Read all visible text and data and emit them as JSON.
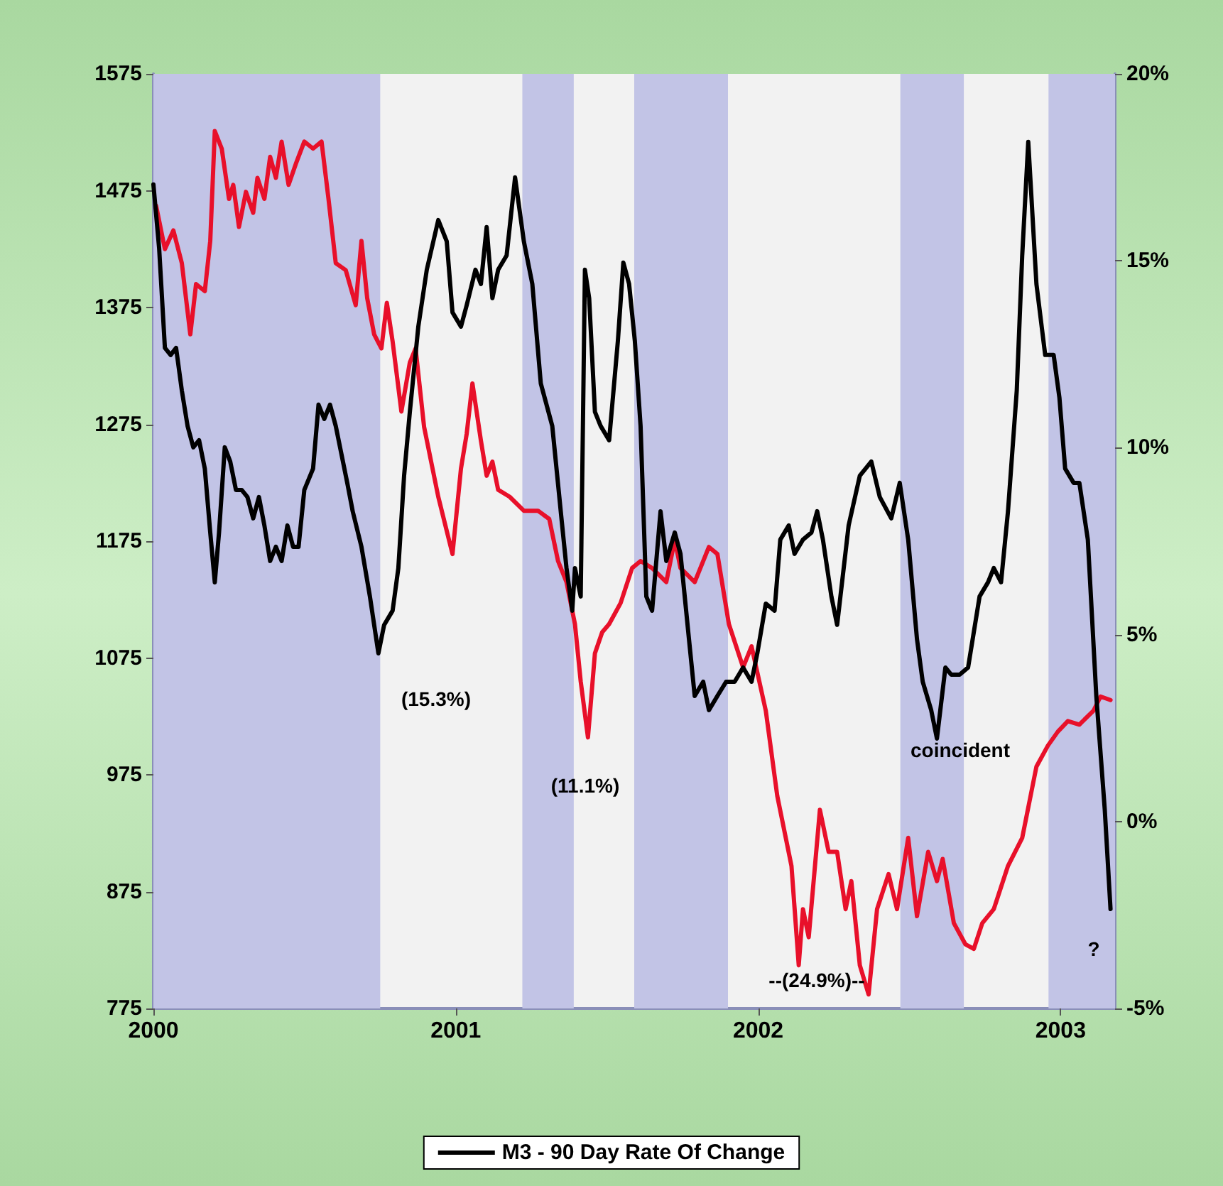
{
  "chart_data": {
    "type": "line",
    "xlim": [
      2000,
      2003.18
    ],
    "xticks": [
      2000,
      2001,
      2002,
      2003
    ],
    "ylim": [
      775,
      1575
    ],
    "yticks": [
      775,
      875,
      975,
      1075,
      1175,
      1275,
      1375,
      1475,
      1575
    ],
    "y2lim": [
      -5,
      20
    ],
    "y2ticks": [
      {
        "value": -5,
        "label": "-5%"
      },
      {
        "value": 0,
        "label": "0%"
      },
      {
        "value": 5,
        "label": "5%"
      },
      {
        "value": 10,
        "label": "10%"
      },
      {
        "value": 15,
        "label": "15%"
      },
      {
        "value": 20,
        "label": "20%"
      }
    ],
    "grid": false,
    "legend": "bottom",
    "bands": [
      {
        "axis": "x",
        "from": 2000,
        "to": 2000.75,
        "color": "#c2c4e6"
      },
      {
        "axis": "x",
        "from": 2001.22,
        "to": 2001.39,
        "color": "#c2c4e6"
      },
      {
        "axis": "x",
        "from": 2001.59,
        "to": 2001.9,
        "color": "#c2c4e6"
      },
      {
        "axis": "x",
        "from": 2002.47,
        "to": 2002.68,
        "color": "#c2c4e6"
      },
      {
        "axis": "x",
        "from": 2002.96,
        "to": 2003.18,
        "color": "#c2c4e6"
      }
    ],
    "annotations": [
      "(15.3%)",
      "(11.1%)",
      "--(24.9%)--",
      "coincident",
      "?"
    ],
    "series": [
      {
        "color": "#e8102a",
        "x": [
          2000.009,
          2000.038,
          2000.066,
          2000.094,
          2000.122,
          2000.141,
          2000.17,
          2000.188,
          2000.203,
          2000.226,
          2000.25,
          2000.264,
          2000.283,
          2000.306,
          2000.33,
          2000.344,
          2000.367,
          2000.386,
          2000.405,
          2000.424,
          2000.447,
          2000.471,
          2000.499,
          2000.528,
          2000.556,
          2000.579,
          2000.603,
          2000.636,
          2000.669,
          2000.688,
          2000.707,
          2000.73,
          2000.754,
          2000.772,
          2000.791,
          2000.82,
          2000.848,
          2000.867,
          2000.895,
          2000.942,
          2000.989,
          2001.017,
          2001.036,
          2001.055,
          2001.083,
          2001.102,
          2001.121,
          2001.14,
          2001.178,
          2001.225,
          2001.272,
          2001.309,
          2001.338,
          2001.366,
          2001.394,
          2001.413,
          2001.437,
          2001.46,
          2001.484,
          2001.507,
          2001.545,
          2001.583,
          2001.611,
          2001.649,
          2001.696,
          2001.724,
          2001.743,
          2001.79,
          2001.837,
          2001.865,
          2001.903,
          2001.95,
          2001.978,
          2002.025,
          2002.063,
          2002.11,
          2002.134,
          2002.148,
          2002.167,
          2002.204,
          2002.233,
          2002.261,
          2002.289,
          2002.308,
          2002.336,
          2002.365,
          2002.393,
          2002.431,
          2002.459,
          2002.496,
          2002.525,
          2002.562,
          2002.591,
          2002.61,
          2002.647,
          2002.685,
          2002.713,
          2002.741,
          2002.779,
          2002.826,
          2002.873,
          2002.92,
          2002.958,
          2002.991,
          2003.024,
          2003.062,
          2003.109,
          2003.132,
          2003.165
        ],
        "values": [
          1462,
          1425,
          1441,
          1413,
          1352,
          1395,
          1389,
          1432,
          1526,
          1511,
          1468,
          1480,
          1444,
          1474,
          1456,
          1486,
          1468,
          1504,
          1486,
          1517,
          1480,
          1498,
          1517,
          1511,
          1517,
          1468,
          1413,
          1407,
          1377,
          1432,
          1383,
          1352,
          1340,
          1379,
          1346,
          1286,
          1328,
          1340,
          1273,
          1213,
          1164,
          1237,
          1267,
          1310,
          1261,
          1231,
          1243,
          1219,
          1213,
          1201,
          1201,
          1194,
          1158,
          1140,
          1104,
          1055,
          1007,
          1079,
          1097,
          1104,
          1122,
          1152,
          1158,
          1152,
          1140,
          1176,
          1152,
          1140,
          1170,
          1164,
          1104,
          1067,
          1085,
          1030,
          957,
          897,
          812,
          860,
          836,
          945,
          909,
          909,
          860,
          884,
          812,
          787,
          860,
          890,
          860,
          921,
          854,
          909,
          884,
          903,
          848,
          830,
          826,
          848,
          860,
          897,
          921,
          982,
          1000,
          1012,
          1021,
          1018,
          1030,
          1042,
          1039
        ]
      },
      {
        "name": "M3 - 90 Day Rate Of Change",
        "color": "#000000",
        "axis": "y2",
        "x": [
          2000.0,
          2000.019,
          2000.038,
          2000.057,
          2000.075,
          2000.094,
          2000.113,
          2000.132,
          2000.151,
          2000.17,
          2000.188,
          2000.203,
          2000.217,
          2000.236,
          2000.254,
          2000.273,
          2000.292,
          2000.311,
          2000.33,
          2000.349,
          2000.367,
          2000.386,
          2000.405,
          2000.424,
          2000.443,
          2000.462,
          2000.48,
          2000.499,
          2000.528,
          2000.546,
          2000.565,
          2000.584,
          2000.603,
          2000.622,
          2000.641,
          2000.659,
          2000.688,
          2000.716,
          2000.744,
          2000.763,
          2000.791,
          2000.81,
          2000.829,
          2000.848,
          2000.876,
          2000.904,
          2000.942,
          2000.97,
          2000.989,
          2001.017,
          2001.036,
          2001.065,
          2001.083,
          2001.102,
          2001.121,
          2001.14,
          2001.168,
          2001.196,
          2001.225,
          2001.253,
          2001.281,
          2001.319,
          2001.347,
          2001.366,
          2001.385,
          2001.394,
          2001.413,
          2001.427,
          2001.441,
          2001.46,
          2001.479,
          2001.507,
          2001.536,
          2001.554,
          2001.573,
          2001.592,
          2001.611,
          2001.63,
          2001.649,
          2001.677,
          2001.696,
          2001.724,
          2001.743,
          2001.771,
          2001.79,
          2001.818,
          2001.837,
          2001.865,
          2001.894,
          2001.922,
          2001.95,
          2001.978,
          2001.997,
          2002.025,
          2002.054,
          2002.073,
          2002.101,
          2002.12,
          2002.148,
          2002.176,
          2002.195,
          2002.214,
          2002.242,
          2002.261,
          2002.299,
          2002.336,
          2002.374,
          2002.402,
          2002.44,
          2002.468,
          2002.496,
          2002.525,
          2002.544,
          2002.572,
          2002.591,
          2002.619,
          2002.638,
          2002.666,
          2002.694,
          2002.732,
          2002.76,
          2002.779,
          2002.803,
          2002.826,
          2002.855,
          2002.873,
          2002.893,
          2002.92,
          2002.949,
          2002.977,
          2002.996,
          2003.015,
          2003.043,
          2003.062,
          2003.09,
          2003.118,
          2003.146,
          2003.165
        ],
        "values": [
          17.04,
          15.33,
          12.67,
          12.48,
          12.67,
          11.53,
          10.58,
          10.01,
          10.2,
          9.44,
          7.73,
          6.4,
          7.73,
          10.01,
          9.63,
          8.87,
          8.87,
          8.68,
          8.11,
          8.68,
          7.92,
          6.97,
          7.35,
          6.97,
          7.92,
          7.35,
          7.35,
          8.87,
          9.44,
          11.15,
          10.77,
          11.15,
          10.58,
          9.82,
          9.06,
          8.3,
          7.35,
          6.02,
          4.5,
          5.26,
          5.64,
          6.78,
          9.25,
          10.96,
          13.24,
          14.76,
          16.09,
          15.52,
          13.62,
          13.24,
          13.81,
          14.76,
          14.38,
          15.9,
          14.0,
          14.76,
          15.14,
          17.23,
          15.52,
          14.38,
          11.72,
          10.58,
          8.3,
          6.78,
          5.64,
          6.78,
          6.02,
          14.76,
          14.0,
          10.96,
          10.58,
          10.2,
          12.86,
          14.95,
          14.38,
          12.86,
          10.58,
          6.02,
          5.64,
          8.3,
          6.97,
          7.73,
          7.16,
          4.88,
          3.36,
          3.74,
          2.98,
          3.36,
          3.74,
          3.74,
          4.12,
          3.74,
          4.5,
          5.83,
          5.64,
          7.54,
          7.92,
          7.16,
          7.54,
          7.73,
          8.3,
          7.54,
          6.02,
          5.26,
          7.92,
          9.25,
          9.63,
          8.68,
          8.11,
          9.06,
          7.54,
          4.88,
          3.74,
          2.98,
          2.22,
          4.12,
          3.93,
          3.93,
          4.12,
          6.02,
          6.4,
          6.78,
          6.4,
          8.3,
          11.53,
          15.14,
          18.18,
          14.38,
          12.48,
          12.48,
          11.34,
          9.44,
          9.06,
          9.06,
          7.54,
          3.36,
          0.32,
          -2.34
        ]
      }
    ]
  }
}
